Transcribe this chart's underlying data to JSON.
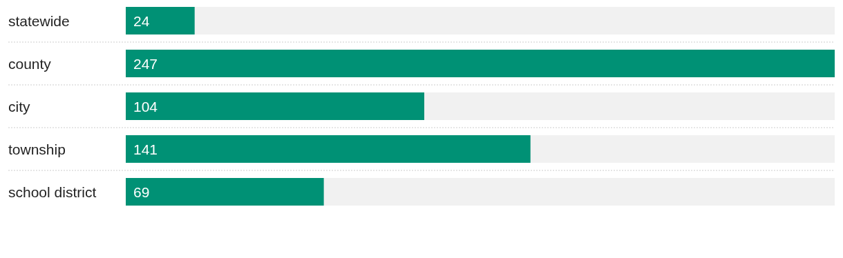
{
  "chart_data": {
    "type": "bar",
    "orientation": "horizontal",
    "categories": [
      "statewide",
      "county",
      "city",
      "township",
      "school district"
    ],
    "values": [
      24,
      247,
      104,
      141,
      69
    ],
    "color": "#009175",
    "data_labels": true
  }
}
